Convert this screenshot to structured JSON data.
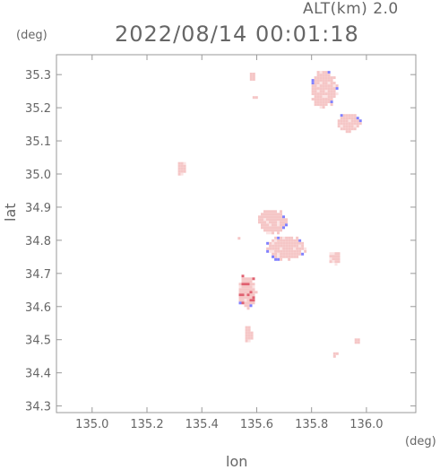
{
  "chart_data": {
    "type": "heatmap",
    "title": "2022/08/14 00:01:18",
    "subtitle": "ALT(km) 2.0",
    "xlabel": "lon",
    "ylabel": "lat",
    "xunit": "(deg)",
    "yunit": "(deg)",
    "xlim": [
      134.87,
      136.18
    ],
    "ylim": [
      34.28,
      35.36
    ],
    "xticks": [
      "135.0",
      "135.2",
      "135.4",
      "135.6",
      "135.8",
      "136.0"
    ],
    "yticks": [
      "34.3",
      "34.4",
      "34.5",
      "34.6",
      "34.7",
      "34.8",
      "34.9",
      "35.0",
      "35.1",
      "35.2",
      "35.3"
    ],
    "grid": false,
    "colors": {
      "cell": "#f5c6c6",
      "cell_edge": "#8080ff",
      "strong": "#e06070",
      "frame": "#999999"
    },
    "clusters": [
      {
        "lon": 135.58,
        "lat": 35.3,
        "rx": 0.01,
        "ry": 0.01
      },
      {
        "lon": 135.585,
        "lat": 35.235,
        "rx": 0.005,
        "ry": 0.004
      },
      {
        "lon": 135.84,
        "lat": 35.26,
        "rx": 0.045,
        "ry": 0.055
      },
      {
        "lon": 135.93,
        "lat": 35.16,
        "rx": 0.04,
        "ry": 0.025
      },
      {
        "lon": 135.32,
        "lat": 35.02,
        "rx": 0.012,
        "ry": 0.02
      },
      {
        "lon": 135.65,
        "lat": 34.86,
        "rx": 0.05,
        "ry": 0.035
      },
      {
        "lon": 135.7,
        "lat": 34.78,
        "rx": 0.07,
        "ry": 0.035
      },
      {
        "lon": 135.88,
        "lat": 34.75,
        "rx": 0.02,
        "ry": 0.018
      },
      {
        "lon": 135.53,
        "lat": 34.81,
        "rx": 0.004,
        "ry": 0.004
      },
      {
        "lon": 135.56,
        "lat": 34.65,
        "rx": 0.03,
        "ry": 0.05
      },
      {
        "lon": 135.565,
        "lat": 34.52,
        "rx": 0.012,
        "ry": 0.025
      },
      {
        "lon": 135.96,
        "lat": 34.5,
        "rx": 0.008,
        "ry": 0.008
      },
      {
        "lon": 135.88,
        "lat": 34.46,
        "rx": 0.006,
        "ry": 0.006
      }
    ]
  }
}
